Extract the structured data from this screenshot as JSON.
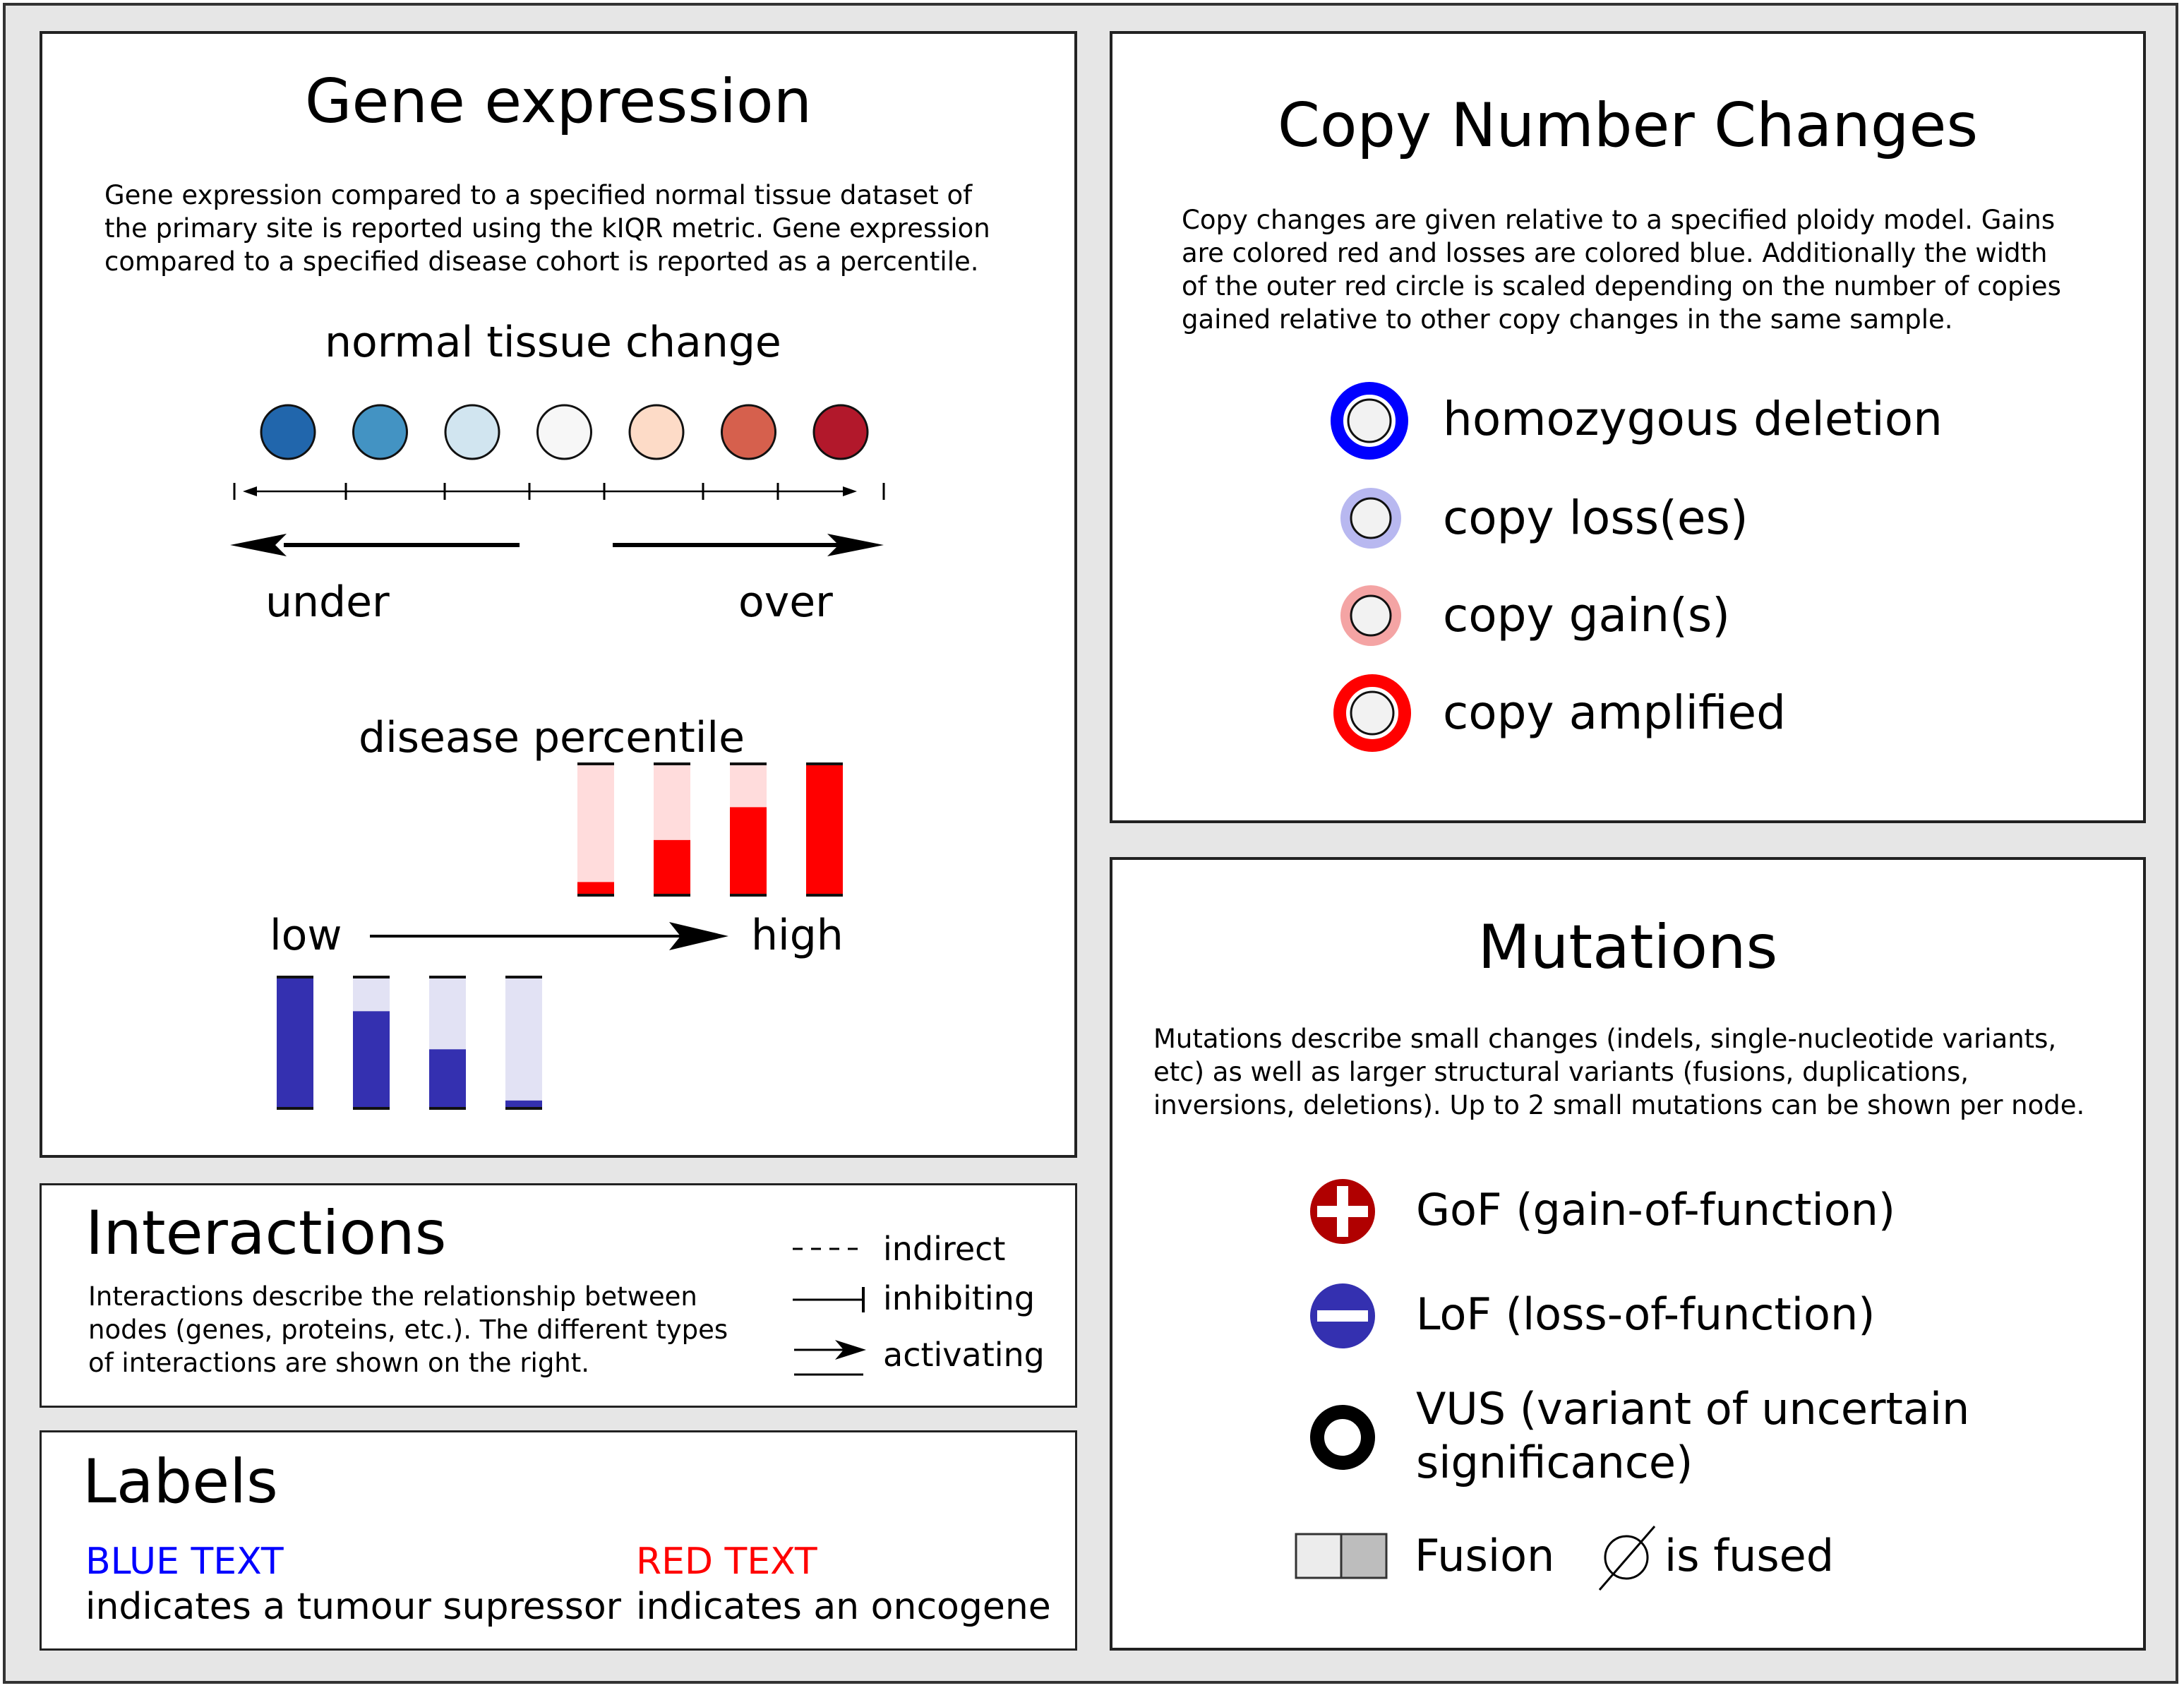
{
  "gene_expression": {
    "title": "Gene expression",
    "description_lines": [
      "Gene expression compared to a specified normal tissue dataset of",
      "the primary site is reported using the kIQR metric. Gene expression",
      "compared to a specified disease cohort is reported as a percentile."
    ],
    "normal_tissue": {
      "label": "normal tissue change",
      "circle_colors": [
        "#2166ac",
        "#4393c3",
        "#d1e5f0",
        "#f7f7f7",
        "#fddbc7",
        "#d6604d",
        "#b2182b"
      ],
      "under_label": "under",
      "over_label": "over"
    },
    "disease_percentile": {
      "label": "disease percentile",
      "low_label": "low",
      "high_label": "high",
      "red_bar_fill_fractions": [
        0.1,
        0.42,
        0.67,
        1.0
      ],
      "blue_bar_fill_fractions": [
        1.0,
        0.74,
        0.45,
        0.06
      ],
      "red_fill_color": "#ff0000",
      "red_empty_color": "#ffdcdc",
      "blue_fill_color": "#3430b0",
      "blue_empty_color": "#e2e2f4"
    }
  },
  "copy_number": {
    "title": "Copy Number Changes",
    "description_lines": [
      "Copy changes are given relative to a specified ploidy model. Gains",
      "are colored red and losses are colored blue. Additionally the width",
      "of the outer red circle is scaled depending on the number of copies",
      "gained relative to other copy changes in the same sample."
    ],
    "items": [
      {
        "label": "homozygous deletion",
        "ring_color": "#0000ff"
      },
      {
        "label": "copy loss(es)",
        "ring_color": "#b8b8f0"
      },
      {
        "label": "copy gain(s)",
        "ring_color": "#f4a4a4"
      },
      {
        "label": "copy amplified",
        "ring_color": "#ff0000"
      }
    ]
  },
  "mutations": {
    "title": "Mutations",
    "description_lines": [
      "Mutations describe small changes (indels, single-nucleotide variants,",
      "etc) as well as larger structural variants (fusions, duplications,",
      "inversions, deletions). Up to 2 small mutations can be shown per node."
    ],
    "gof_label": "GoF (gain-of-function)",
    "lof_label": "LoF (loss-of-function)",
    "vus_label_line1": "VUS (variant of uncertain",
    "vus_label_line2": "significance)",
    "fusion_label": "Fusion",
    "fused_label": "is fused",
    "gof_color": "#b00000",
    "lof_color": "#3430b0"
  },
  "interactions": {
    "title": "Interactions",
    "description_lines": [
      "Interactions describe the relationship between",
      "nodes (genes, proteins, etc.). The different types",
      "of interactions are shown on the right."
    ],
    "indirect_label": "indirect",
    "inhibiting_label": "inhibiting",
    "activating_label": "activating"
  },
  "labels": {
    "title": "Labels",
    "blue_heading": "BLUE TEXT",
    "blue_text": "indicates a tumour supressor",
    "red_heading": "RED TEXT",
    "red_text": "indicates an oncogene",
    "blue_color": "#0000ff",
    "red_color": "#ff0000"
  }
}
